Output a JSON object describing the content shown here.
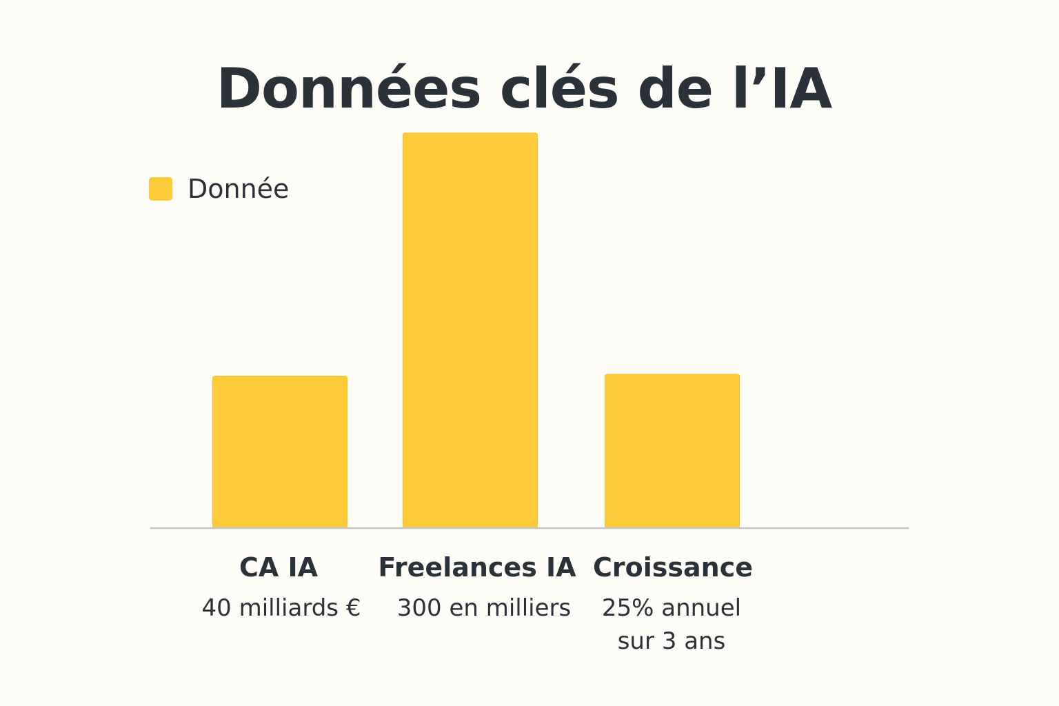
{
  "chart_data": {
    "type": "bar",
    "title": "Données clés de l’IA",
    "legend": {
      "label": "Donnée",
      "placement": "top-left"
    },
    "categories": [
      "CA IA",
      "Freelances IA",
      "Croissance"
    ],
    "category_details": [
      [
        "40 milliards €"
      ],
      [
        "300 en milliers"
      ],
      [
        "25% annuel",
        "sur 3 ans"
      ]
    ],
    "series": [
      {
        "name": "Donnée",
        "values": [
          40,
          104,
          40.5
        ]
      }
    ],
    "ylim": [
      0,
      110
    ],
    "grid": false,
    "axis_ticks_shown": false
  },
  "colors": {
    "bar": "#fdca3a",
    "bar_edge": "#f4c02c",
    "axis": "#c5c5c5",
    "text": "#2b3138",
    "background": "#fdfcf6"
  }
}
